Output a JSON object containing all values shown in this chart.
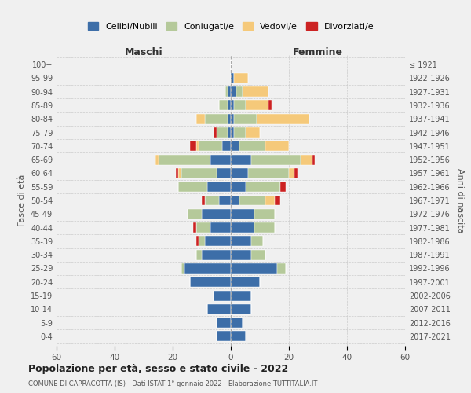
{
  "age_groups": [
    "0-4",
    "5-9",
    "10-14",
    "15-19",
    "20-24",
    "25-29",
    "30-34",
    "35-39",
    "40-44",
    "45-49",
    "50-54",
    "55-59",
    "60-64",
    "65-69",
    "70-74",
    "75-79",
    "80-84",
    "85-89",
    "90-94",
    "95-99",
    "100+"
  ],
  "birth_years": [
    "2017-2021",
    "2012-2016",
    "2007-2011",
    "2002-2006",
    "1997-2001",
    "1992-1996",
    "1987-1991",
    "1982-1986",
    "1977-1981",
    "1972-1976",
    "1967-1971",
    "1962-1966",
    "1957-1961",
    "1952-1956",
    "1947-1951",
    "1942-1946",
    "1937-1941",
    "1932-1936",
    "1927-1931",
    "1922-1926",
    "≤ 1921"
  ],
  "colors": {
    "celibi": "#3d6ea8",
    "coniugati": "#b5c99a",
    "vedovi": "#f5c97a",
    "divorziati": "#cc2222"
  },
  "maschi": {
    "celibi": [
      5,
      5,
      8,
      6,
      14,
      16,
      10,
      9,
      7,
      10,
      4,
      8,
      5,
      7,
      3,
      1,
      1,
      1,
      1,
      0,
      0
    ],
    "coniugati": [
      0,
      0,
      0,
      0,
      0,
      1,
      2,
      2,
      5,
      5,
      5,
      10,
      12,
      18,
      8,
      4,
      8,
      3,
      1,
      0,
      0
    ],
    "vedovi": [
      0,
      0,
      0,
      0,
      0,
      0,
      0,
      0,
      0,
      0,
      0,
      0,
      1,
      1,
      1,
      0,
      3,
      0,
      0,
      0,
      0
    ],
    "divorziati": [
      0,
      0,
      0,
      0,
      0,
      0,
      0,
      1,
      1,
      0,
      1,
      0,
      1,
      0,
      2,
      1,
      0,
      0,
      0,
      0,
      0
    ]
  },
  "femmine": {
    "celibi": [
      5,
      4,
      7,
      7,
      10,
      16,
      7,
      7,
      8,
      8,
      3,
      5,
      6,
      7,
      3,
      1,
      1,
      1,
      2,
      1,
      0
    ],
    "coniugati": [
      0,
      0,
      0,
      0,
      0,
      3,
      5,
      4,
      7,
      7,
      9,
      12,
      14,
      17,
      9,
      4,
      8,
      4,
      2,
      0,
      0
    ],
    "vedovi": [
      0,
      0,
      0,
      0,
      0,
      0,
      0,
      0,
      0,
      0,
      3,
      0,
      2,
      4,
      8,
      5,
      18,
      8,
      9,
      5,
      0
    ],
    "divorziati": [
      0,
      0,
      0,
      0,
      0,
      0,
      0,
      0,
      0,
      0,
      2,
      2,
      1,
      1,
      0,
      0,
      0,
      1,
      0,
      0,
      0
    ]
  },
  "xlim": 60,
  "title": "Popolazione per età, sesso e stato civile - 2022",
  "subtitle": "COMUNE DI CAPRACOTTA (IS) - Dati ISTAT 1° gennaio 2022 - Elaborazione TUTTITALIA.IT",
  "xlabel_left": "Maschi",
  "xlabel_right": "Femmine",
  "ylabel_left": "Fasce di età",
  "ylabel_right": "Anni di nascita",
  "legend_labels": [
    "Celibi/Nubili",
    "Coniugati/e",
    "Vedovi/e",
    "Divorziati/e"
  ],
  "bg_color": "#f0f0f0",
  "bar_height": 0.75
}
